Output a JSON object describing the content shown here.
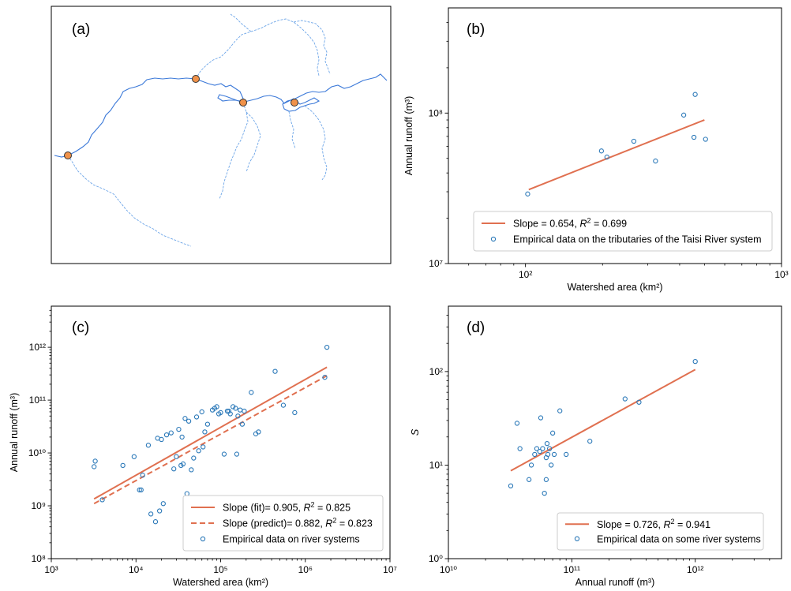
{
  "colors": {
    "fit": "#e07050",
    "point": "#2a78b8",
    "river": "#3a78d8",
    "site_fill": "#f0924a",
    "site_edge": "#333333"
  },
  "chart_data": [
    {
      "panel": "(a)",
      "type": "map",
      "legend": [],
      "sites": 4
    },
    {
      "panel": "(b)",
      "type": "scatter",
      "xscale": "log",
      "yscale": "log",
      "xlim": [
        50,
        1000
      ],
      "ylim": [
        10000000,
        500000000
      ],
      "xlabel": "Watershed area (km²)",
      "ylabel": "Annual runoff (m³)",
      "xticks": [
        {
          "v": 100,
          "label": "10²"
        },
        {
          "v": 1000,
          "label": "10³"
        }
      ],
      "yticks": [
        {
          "v": 10000000,
          "label": "10⁷"
        },
        {
          "v": 100000000,
          "label": "10⁸"
        }
      ],
      "legend_position": "lower-right",
      "series": [
        {
          "kind": "line",
          "style": "solid",
          "name_text": "Slope = 0.654, ",
          "r2_text": " = 0.699",
          "x": [
            103,
            500
          ],
          "y": [
            31000000,
            90000000
          ]
        },
        {
          "kind": "points",
          "name": "Empirical data on the tributaries of the Taisi River system",
          "x": [
            102,
            198,
            208,
            265,
            322,
            415,
            455,
            460,
            505
          ],
          "y": [
            29000000,
            56000000,
            51000000,
            65000000,
            48000000,
            97000000,
            69000000,
            133000000,
            67000000
          ]
        }
      ]
    },
    {
      "panel": "(c)",
      "type": "scatter",
      "xscale": "log",
      "yscale": "log",
      "xlim": [
        1000,
        10000000
      ],
      "ylim": [
        100000000,
        6000000000000
      ],
      "xlabel": "Watershed area (km²)",
      "ylabel": "Annual runoff (m³)",
      "xticks": [
        {
          "v": 1000,
          "label": "10³"
        },
        {
          "v": 10000,
          "label": "10⁴"
        },
        {
          "v": 100000,
          "label": "10⁵"
        },
        {
          "v": 1000000,
          "label": "10⁶"
        },
        {
          "v": 10000000,
          "label": "10⁷"
        }
      ],
      "yticks": [
        {
          "v": 100000000,
          "label": "10⁸"
        },
        {
          "v": 1000000000,
          "label": "10⁹"
        },
        {
          "v": 10000000000,
          "label": "10¹⁰"
        },
        {
          "v": 100000000000,
          "label": "10¹¹"
        },
        {
          "v": 1000000000000,
          "label": "10¹²"
        }
      ],
      "legend_position": "lower-right",
      "series": [
        {
          "kind": "line",
          "style": "solid",
          "name_text": "Slope (fit)= 0.905, ",
          "r2_text": " = 0.825",
          "x": [
            3200,
            1800000
          ],
          "y": [
            1350000000,
            420000000000
          ]
        },
        {
          "kind": "line",
          "style": "dashed",
          "name_text": "Slope (predict)= 0.882, ",
          "r2_text": " = 0.823",
          "x": [
            3200,
            1800000
          ],
          "y": [
            1100000000,
            290000000000
          ]
        },
        {
          "kind": "points",
          "name": "Empirical data on river systems",
          "x": [
            3200,
            3300,
            4000,
            7000,
            9500,
            11000,
            12000,
            11500,
            14000,
            15000,
            17000,
            18000,
            19000,
            20000,
            21000,
            23000,
            26000,
            28000,
            30000,
            32000,
            34000,
            35000,
            36000,
            38000,
            40000,
            42000,
            45000,
            48000,
            52000,
            55000,
            60000,
            62000,
            65000,
            70000,
            80000,
            85000,
            90000,
            95000,
            100000,
            110000,
            120000,
            125000,
            130000,
            140000,
            150000,
            155000,
            160000,
            170000,
            180000,
            190000,
            230000,
            260000,
            280000,
            440000,
            550000,
            750000,
            1700000,
            1800000
          ],
          "y": [
            5500000000,
            7000000000,
            1300000000,
            5800000000,
            8500000000,
            2000000000,
            3800000000,
            2000000000,
            14000000000,
            700000000,
            500000000,
            19000000000,
            800000000,
            18000000000,
            1100000000,
            22000000000,
            24000000000,
            5000000000,
            8500000000,
            28000000000,
            5800000000,
            20000000000,
            6200000000,
            45000000000,
            1700000000,
            40000000000,
            4800000000,
            8000000000,
            48000000000,
            11000000000,
            60000000000,
            13000000000,
            25000000000,
            35000000000,
            65000000000,
            70000000000,
            75000000000,
            55000000000,
            58000000000,
            9500000000,
            62000000000,
            62000000000,
            55000000000,
            75000000000,
            70000000000,
            9500000000,
            50000000000,
            65000000000,
            35000000000,
            62000000000,
            140000000000,
            23000000000,
            25000000000,
            350000000000,
            80000000000,
            58000000000,
            270000000000,
            1000000000000
          ]
        }
      ]
    },
    {
      "panel": "(d)",
      "type": "scatter",
      "xscale": "log",
      "yscale": "log",
      "xlim": [
        10000000000,
        5000000000000
      ],
      "ylim": [
        1,
        500
      ],
      "xlabel": "Annual runoff (m³)",
      "ylabel": "S",
      "xticks": [
        {
          "v": 10000000000,
          "label": "10¹⁰"
        },
        {
          "v": 100000000000,
          "label": "10¹¹"
        },
        {
          "v": 1000000000000,
          "label": "10¹²"
        }
      ],
      "yticks": [
        {
          "v": 1,
          "label": "10⁰"
        },
        {
          "v": 10,
          "label": "10¹"
        },
        {
          "v": 100,
          "label": "10²"
        }
      ],
      "legend_position": "lower-right",
      "series": [
        {
          "kind": "line",
          "style": "solid",
          "name_text": "Slope = 0.726, ",
          "r2_text": " = 0.941",
          "x": [
            32000000000,
            1000000000000
          ],
          "y": [
            8.7,
            105
          ]
        },
        {
          "kind": "points",
          "name": "Empirical data on some river systems",
          "x": [
            32000000000,
            36000000000,
            38000000000,
            45000000000,
            47000000000,
            50000000000,
            52000000000,
            55000000000,
            56000000000,
            58000000000,
            60000000000,
            62000000000,
            62000000000,
            63000000000,
            64000000000,
            66000000000,
            68000000000,
            70000000000,
            72000000000,
            80000000000,
            90000000000,
            140000000000,
            270000000000,
            350000000000,
            1000000000000
          ],
          "y": [
            6,
            28,
            15,
            7,
            10,
            13,
            15,
            14,
            32,
            15,
            5,
            7,
            12,
            17,
            13,
            15,
            10,
            22,
            13,
            38,
            13,
            18,
            51,
            47,
            128
          ]
        }
      ]
    }
  ]
}
